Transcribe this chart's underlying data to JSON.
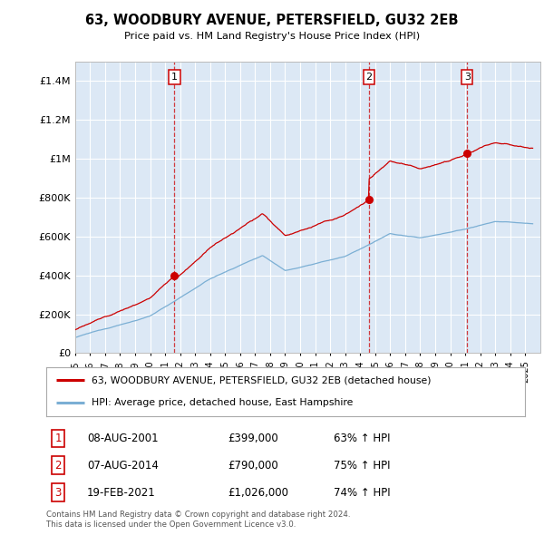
{
  "title": "63, WOODBURY AVENUE, PETERSFIELD, GU32 2EB",
  "subtitle": "Price paid vs. HM Land Registry's House Price Index (HPI)",
  "background_color": "#dce8f5",
  "ylim": [
    0,
    1500000
  ],
  "yticks": [
    0,
    200000,
    400000,
    600000,
    800000,
    1000000,
    1200000,
    1400000
  ],
  "ytick_labels": [
    "£0",
    "£200K",
    "£400K",
    "£600K",
    "£800K",
    "£1M",
    "£1.2M",
    "£1.4M"
  ],
  "sale_line_color": "#cc0000",
  "hpi_line_color": "#7bafd4",
  "sale_marker_color": "#cc0000",
  "sale_times": [
    2001.62,
    2014.59,
    2021.13
  ],
  "sale_prices": [
    399000,
    790000,
    1026000
  ],
  "sale_labels": [
    "1",
    "2",
    "3"
  ],
  "footer_text": "Contains HM Land Registry data © Crown copyright and database right 2024.\nThis data is licensed under the Open Government Licence v3.0.",
  "legend_entry1": "63, WOODBURY AVENUE, PETERSFIELD, GU32 2EB (detached house)",
  "legend_entry2": "HPI: Average price, detached house, East Hampshire",
  "table_rows": [
    [
      "1",
      "08-AUG-2001",
      "£399,000",
      "63% ↑ HPI"
    ],
    [
      "2",
      "07-AUG-2014",
      "£790,000",
      "75% ↑ HPI"
    ],
    [
      "3",
      "19-FEB-2021",
      "£1,026,000",
      "74% ↑ HPI"
    ]
  ]
}
